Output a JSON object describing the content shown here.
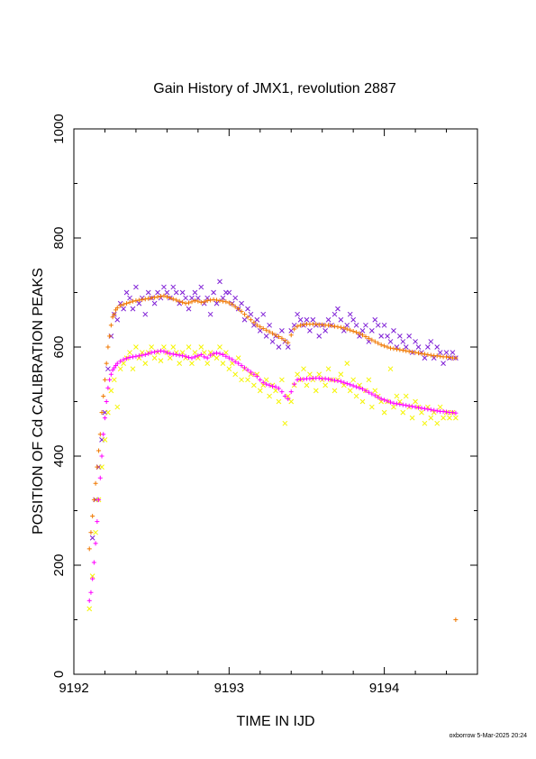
{
  "chart_data": {
    "type": "scatter",
    "title": "Gain History of JMX1, revolution 2887",
    "xlabel": "TIME IN IJD",
    "ylabel": "POSITION OF Cd CALIBRATION PEAKS",
    "xlim": [
      9192,
      9194.6
    ],
    "ylim": [
      0,
      1000
    ],
    "x_ticks": [
      9192,
      9193,
      9194
    ],
    "x_tick_labels": [
      "9192",
      "9193",
      "9194"
    ],
    "y_ticks": [
      0,
      200,
      400,
      600,
      800,
      1000
    ],
    "y_tick_labels": [
      "0",
      "200",
      "400",
      "600",
      "800",
      "1000"
    ],
    "grid": false,
    "legend": "none",
    "series": [
      {
        "marker": "x",
        "color": "#7f1fd6",
        "x": [
          9192.12,
          9192.14,
          9192.16,
          9192.18,
          9192.2,
          9192.22,
          9192.24,
          9192.26,
          9192.28,
          9192.3,
          9192.32,
          9192.34,
          9192.36,
          9192.38,
          9192.4,
          9192.42,
          9192.44,
          9192.46,
          9192.48,
          9192.5,
          9192.52,
          9192.54,
          9192.56,
          9192.58,
          9192.6,
          9192.62,
          9192.64,
          9192.66,
          9192.68,
          9192.7,
          9192.72,
          9192.74,
          9192.76,
          9192.78,
          9192.8,
          9192.82,
          9192.84,
          9192.86,
          9192.88,
          9192.9,
          9192.92,
          9192.94,
          9192.96,
          9192.98,
          9193.0,
          9193.02,
          9193.04,
          9193.06,
          9193.08,
          9193.1,
          9193.12,
          9193.14,
          9193.16,
          9193.18,
          9193.2,
          9193.22,
          9193.24,
          9193.26,
          9193.28,
          9193.3,
          9193.32,
          9193.34,
          9193.36,
          9193.38,
          9193.4,
          9193.42,
          9193.44,
          9193.46,
          9193.48,
          9193.5,
          9193.52,
          9193.54,
          9193.56,
          9193.58,
          9193.6,
          9193.62,
          9193.64,
          9193.66,
          9193.68,
          9193.7,
          9193.72,
          9193.74,
          9193.76,
          9193.78,
          9193.8,
          9193.82,
          9193.84,
          9193.86,
          9193.88,
          9193.9,
          9193.92,
          9193.94,
          9193.96,
          9193.98,
          9194.0,
          9194.02,
          9194.04,
          9194.06,
          9194.08,
          9194.1,
          9194.12,
          9194.14,
          9194.16,
          9194.18,
          9194.2,
          9194.22,
          9194.24,
          9194.26,
          9194.28,
          9194.3,
          9194.32,
          9194.34,
          9194.36,
          9194.38,
          9194.4,
          9194.42,
          9194.44,
          9194.46
        ],
        "y": [
          250,
          320,
          380,
          430,
          480,
          560,
          620,
          660,
          650,
          680,
          670,
          700,
          690,
          670,
          710,
          680,
          690,
          660,
          700,
          690,
          680,
          700,
          690,
          710,
          700,
          690,
          710,
          700,
          680,
          700,
          690,
          670,
          690,
          700,
          690,
          710,
          680,
          690,
          660,
          700,
          680,
          720,
          690,
          700,
          700,
          680,
          690,
          670,
          680,
          650,
          670,
          660,
          640,
          650,
          630,
          660,
          620,
          640,
          610,
          620,
          600,
          630,
          610,
          600,
          630,
          640,
          660,
          650,
          640,
          650,
          630,
          650,
          640,
          620,
          640,
          630,
          650,
          640,
          660,
          670,
          650,
          630,
          640,
          660,
          650,
          640,
          620,
          630,
          640,
          610,
          630,
          650,
          640,
          620,
          640,
          620,
          610,
          630,
          600,
          620,
          610,
          600,
          620,
          590,
          610,
          600,
          590,
          580,
          600,
          610,
          580,
          600,
          590,
          570,
          590,
          580,
          590,
          580
        ]
      },
      {
        "marker": "+",
        "color": "#f07800",
        "x": [
          9192.1,
          9192.11,
          9192.12,
          9192.13,
          9192.14,
          9192.15,
          9192.16,
          9192.17,
          9192.18,
          9192.19,
          9192.2,
          9192.21,
          9192.22,
          9192.23,
          9192.24,
          9192.25,
          9192.26,
          9192.27,
          9192.28,
          9192.3,
          9192.32,
          9192.34,
          9192.36,
          9192.38,
          9192.4,
          9192.42,
          9192.44,
          9192.46,
          9192.48,
          9192.5,
          9192.52,
          9192.54,
          9192.56,
          9192.58,
          9192.6,
          9192.62,
          9192.64,
          9192.66,
          9192.68,
          9192.7,
          9192.72,
          9192.74,
          9192.76,
          9192.78,
          9192.8,
          9192.82,
          9192.84,
          9192.86,
          9192.88,
          9192.9,
          9192.92,
          9192.94,
          9192.96,
          9192.98,
          9193.0,
          9193.02,
          9193.04,
          9193.06,
          9193.08,
          9193.1,
          9193.12,
          9193.14,
          9193.16,
          9193.18,
          9193.2,
          9193.22,
          9193.24,
          9193.26,
          9193.28,
          9193.3,
          9193.32,
          9193.34,
          9193.36,
          9193.38,
          9193.4,
          9193.42,
          9193.44,
          9193.46,
          9193.48,
          9193.5,
          9193.52,
          9193.54,
          9193.56,
          9193.58,
          9193.6,
          9193.62,
          9193.64,
          9193.66,
          9193.68,
          9193.7,
          9193.72,
          9193.74,
          9193.76,
          9193.78,
          9193.8,
          9193.82,
          9193.84,
          9193.86,
          9193.88,
          9193.9,
          9193.92,
          9193.94,
          9193.96,
          9193.98,
          9194.0,
          9194.02,
          9194.04,
          9194.06,
          9194.08,
          9194.1,
          9194.12,
          9194.14,
          9194.16,
          9194.18,
          9194.2,
          9194.22,
          9194.24,
          9194.26,
          9194.28,
          9194.3,
          9194.32,
          9194.34,
          9194.36,
          9194.38,
          9194.4,
          9194.42,
          9194.44,
          9194.46,
          9194.46
        ],
        "y": [
          230,
          260,
          290,
          320,
          350,
          380,
          410,
          440,
          480,
          510,
          540,
          570,
          600,
          620,
          640,
          655,
          660,
          668,
          672,
          676,
          678,
          680,
          682,
          684,
          685,
          686,
          687,
          688,
          689,
          690,
          691,
          692,
          693,
          694,
          692,
          690,
          688,
          686,
          684,
          682,
          680,
          681,
          683,
          685,
          684,
          682,
          683,
          685,
          686,
          687,
          686,
          685,
          684,
          683,
          681,
          678,
          674,
          670,
          665,
          660,
          655,
          650,
          645,
          640,
          637,
          634,
          631,
          628,
          625,
          622,
          619,
          616,
          612,
          608,
          622,
          633,
          638,
          640,
          641,
          642,
          642,
          642,
          642,
          641,
          641,
          640,
          640,
          639,
          638,
          637,
          636,
          635,
          633,
          631,
          629,
          627,
          625,
          622,
          619,
          616,
          613,
          610,
          607,
          604,
          602,
          600,
          598,
          597,
          596,
          595,
          594,
          593,
          592,
          591,
          590,
          589,
          588,
          587,
          586,
          585,
          584,
          584,
          583,
          582,
          582,
          581,
          580,
          580,
          100
        ]
      },
      {
        "marker": "x",
        "color": "#f5f500",
        "x": [
          9192.1,
          9192.12,
          9192.14,
          9192.16,
          9192.18,
          9192.2,
          9192.22,
          9192.24,
          9192.26,
          9192.28,
          9192.3,
          9192.32,
          9192.34,
          9192.36,
          9192.38,
          9192.4,
          9192.42,
          9192.44,
          9192.46,
          9192.48,
          9192.5,
          9192.52,
          9192.54,
          9192.56,
          9192.58,
          9192.6,
          9192.62,
          9192.64,
          9192.66,
          9192.68,
          9192.7,
          9192.72,
          9192.74,
          9192.76,
          9192.78,
          9192.8,
          9192.82,
          9192.84,
          9192.86,
          9192.88,
          9192.9,
          9192.92,
          9192.94,
          9192.96,
          9192.98,
          9193.0,
          9193.02,
          9193.04,
          9193.06,
          9193.08,
          9193.1,
          9193.12,
          9193.14,
          9193.16,
          9193.18,
          9193.2,
          9193.22,
          9193.24,
          9193.26,
          9193.28,
          9193.3,
          9193.32,
          9193.34,
          9193.36,
          9193.38,
          9193.4,
          9193.42,
          9193.44,
          9193.46,
          9193.48,
          9193.5,
          9193.52,
          9193.54,
          9193.56,
          9193.58,
          9193.6,
          9193.62,
          9193.64,
          9193.66,
          9193.68,
          9193.7,
          9193.72,
          9193.74,
          9193.76,
          9193.78,
          9193.8,
          9193.82,
          9193.84,
          9193.86,
          9193.88,
          9193.9,
          9193.92,
          9193.94,
          9193.96,
          9193.98,
          9194.0,
          9194.02,
          9194.04,
          9194.06,
          9194.08,
          9194.1,
          9194.12,
          9194.14,
          9194.16,
          9194.18,
          9194.2,
          9194.22,
          9194.24,
          9194.26,
          9194.28,
          9194.3,
          9194.32,
          9194.34,
          9194.36,
          9194.38,
          9194.4,
          9194.42,
          9194.44,
          9194.46
        ],
        "y": [
          120,
          180,
          260,
          320,
          380,
          430,
          480,
          520,
          540,
          490,
          560,
          570,
          580,
          590,
          560,
          600,
          580,
          590,
          570,
          590,
          600,
          580,
          590,
          575,
          600,
          590,
          580,
          600,
          590,
          570,
          590,
          580,
          600,
          570,
          590,
          580,
          600,
          590,
          570,
          590,
          585,
          580,
          600,
          570,
          590,
          560,
          570,
          550,
          580,
          540,
          560,
          540,
          550,
          530,
          550,
          520,
          530,
          540,
          510,
          530,
          520,
          500,
          540,
          460,
          510,
          500,
          530,
          550,
          540,
          560,
          530,
          550,
          540,
          520,
          550,
          540,
          530,
          560,
          540,
          520,
          540,
          550,
          530,
          570,
          520,
          540,
          510,
          530,
          500,
          520,
          540,
          490,
          520,
          510,
          500,
          480,
          500,
          560,
          490,
          510,
          500,
          480,
          510,
          490,
          470,
          500,
          490,
          480,
          460,
          490,
          470,
          480,
          460,
          490,
          470,
          480,
          470,
          480,
          470
        ]
      },
      {
        "marker": "+",
        "color": "#ff00ff",
        "x": [
          9192.1,
          9192.11,
          9192.12,
          9192.13,
          9192.14,
          9192.15,
          9192.16,
          9192.17,
          9192.18,
          9192.19,
          9192.2,
          9192.21,
          9192.22,
          9192.23,
          9192.24,
          9192.25,
          9192.26,
          9192.27,
          9192.28,
          9192.3,
          9192.32,
          9192.34,
          9192.36,
          9192.38,
          9192.4,
          9192.42,
          9192.44,
          9192.46,
          9192.48,
          9192.5,
          9192.52,
          9192.54,
          9192.56,
          9192.58,
          9192.6,
          9192.62,
          9192.64,
          9192.66,
          9192.68,
          9192.7,
          9192.72,
          9192.74,
          9192.76,
          9192.78,
          9192.8,
          9192.82,
          9192.84,
          9192.86,
          9192.88,
          9192.9,
          9192.92,
          9192.94,
          9192.96,
          9192.98,
          9193.0,
          9193.02,
          9193.04,
          9193.06,
          9193.08,
          9193.1,
          9193.12,
          9193.14,
          9193.16,
          9193.18,
          9193.2,
          9193.22,
          9193.24,
          9193.26,
          9193.28,
          9193.3,
          9193.32,
          9193.34,
          9193.36,
          9193.38,
          9193.4,
          9193.42,
          9193.44,
          9193.46,
          9193.48,
          9193.5,
          9193.52,
          9193.54,
          9193.56,
          9193.58,
          9193.6,
          9193.62,
          9193.64,
          9193.66,
          9193.68,
          9193.7,
          9193.72,
          9193.74,
          9193.76,
          9193.78,
          9193.8,
          9193.82,
          9193.84,
          9193.86,
          9193.88,
          9193.9,
          9193.92,
          9193.94,
          9193.96,
          9193.98,
          9194.0,
          9194.02,
          9194.04,
          9194.06,
          9194.08,
          9194.1,
          9194.12,
          9194.14,
          9194.16,
          9194.18,
          9194.2,
          9194.22,
          9194.24,
          9194.26,
          9194.28,
          9194.3,
          9194.32,
          9194.34,
          9194.36,
          9194.38,
          9194.4,
          9194.42,
          9194.44,
          9194.46
        ],
        "y": [
          135,
          150,
          175,
          205,
          240,
          280,
          320,
          360,
          400,
          440,
          470,
          500,
          525,
          540,
          550,
          558,
          562,
          566,
          570,
          574,
          577,
          579,
          581,
          582,
          583,
          584,
          585,
          586,
          588,
          590,
          591,
          592,
          593,
          592,
          590,
          588,
          587,
          586,
          585,
          584,
          583,
          581,
          580,
          582,
          584,
          586,
          582,
          580,
          585,
          588,
          589,
          588,
          586,
          583,
          580,
          577,
          573,
          570,
          566,
          562,
          558,
          554,
          550,
          546,
          540,
          535,
          532,
          530,
          528,
          527,
          524,
          518,
          510,
          505,
          518,
          532,
          540,
          541,
          541,
          542,
          542,
          543,
          543,
          543,
          542,
          542,
          541,
          540,
          539,
          538,
          537,
          535,
          533,
          531,
          529,
          527,
          525,
          523,
          520,
          517,
          514,
          511,
          508,
          505,
          503,
          501,
          499,
          497,
          496,
          495,
          494,
          493,
          492,
          491,
          490,
          489,
          488,
          487,
          486,
          485,
          484,
          483,
          482,
          482,
          481,
          480,
          480,
          479
        ]
      }
    ]
  },
  "footer": {
    "credit": "oxborrow  5-Mar-2025 20:24"
  }
}
